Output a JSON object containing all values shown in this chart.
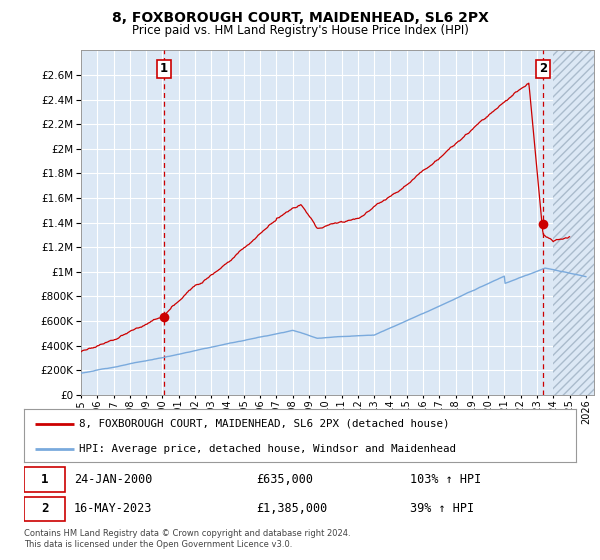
{
  "title": "8, FOXBOROUGH COURT, MAIDENHEAD, SL6 2PX",
  "subtitle": "Price paid vs. HM Land Registry's House Price Index (HPI)",
  "legend_line1": "8, FOXBOROUGH COURT, MAIDENHEAD, SL6 2PX (detached house)",
  "legend_line2": "HPI: Average price, detached house, Windsor and Maidenhead",
  "annotation1_date": "24-JAN-2000",
  "annotation1_price": "£635,000",
  "annotation1_hpi": "103% ↑ HPI",
  "annotation2_date": "16-MAY-2023",
  "annotation2_price": "£1,385,000",
  "annotation2_hpi": "39% ↑ HPI",
  "footnote": "Contains HM Land Registry data © Crown copyright and database right 2024.\nThis data is licensed under the Open Government Licence v3.0.",
  "hpi_color": "#7aaadd",
  "price_color": "#cc0000",
  "vline_color": "#cc0000",
  "background_color": "#ffffff",
  "plot_bg_color": "#dce8f5",
  "grid_color": "#ffffff",
  "ylim_min": 0,
  "ylim_max": 2800000,
  "yticks": [
    0,
    200000,
    400000,
    600000,
    800000,
    1000000,
    1200000,
    1400000,
    1600000,
    1800000,
    2000000,
    2200000,
    2400000,
    2600000
  ],
  "xtick_years": [
    1995,
    1996,
    1997,
    1998,
    1999,
    2000,
    2001,
    2002,
    2003,
    2004,
    2005,
    2006,
    2007,
    2008,
    2009,
    2010,
    2011,
    2012,
    2013,
    2014,
    2015,
    2016,
    2017,
    2018,
    2019,
    2020,
    2021,
    2022,
    2023,
    2024,
    2025,
    2026
  ],
  "sale1_year": 2000.07,
  "sale1_price": 635000,
  "sale2_year": 2023.37,
  "sale2_price": 1385000,
  "data_end_year": 2024.0,
  "xlim_min": 1995,
  "xlim_max": 2026.5
}
